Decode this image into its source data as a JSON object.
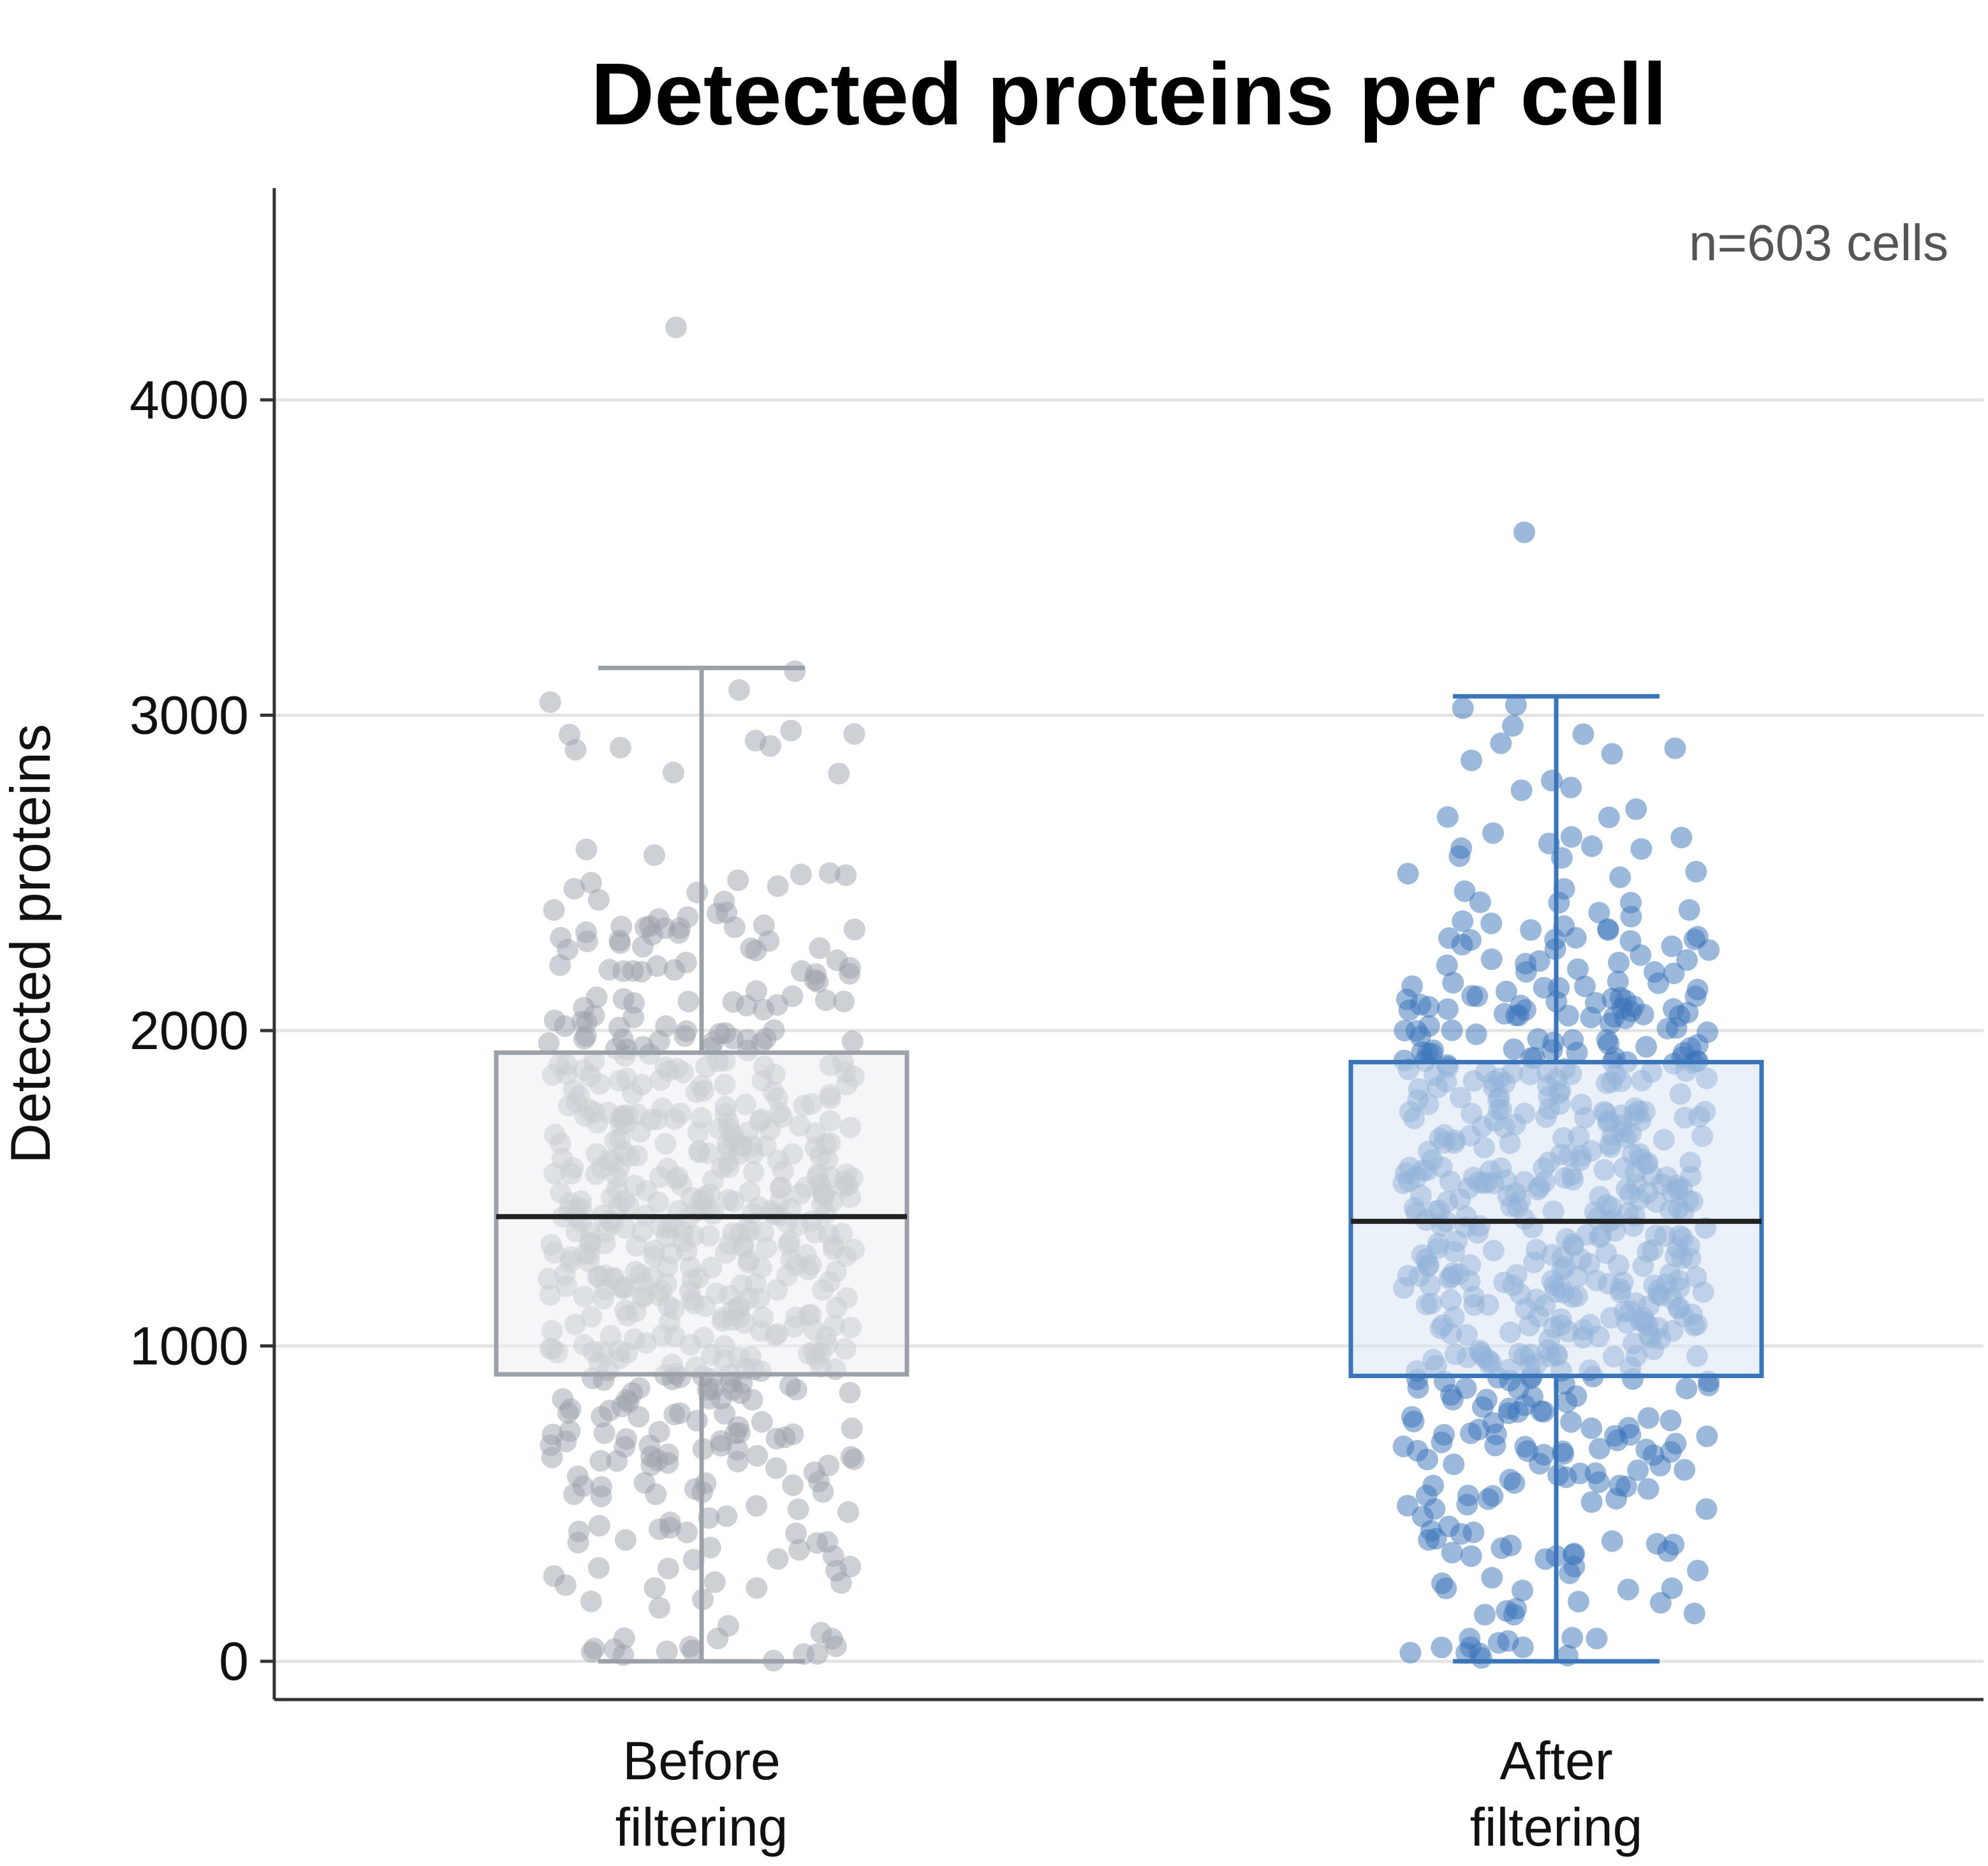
{
  "chart_data": {
    "type": "box",
    "title": "Detected proteins per cell",
    "ylabel": "Detected proteins",
    "xlabel": "",
    "annotation": "n=603 cells",
    "ylim": [
      -120,
      4650
    ],
    "yticks": [
      0,
      1000,
      2000,
      3000,
      4000
    ],
    "grid": true,
    "categories": [
      {
        "lines": [
          "Before",
          "filtering"
        ]
      },
      {
        "lines": [
          "After",
          "filtering"
        ]
      }
    ],
    "series": [
      {
        "category": "Before filtering",
        "color": "#9ba1a9",
        "fill": "#eceef0",
        "whisker_low": 0,
        "q1": 910,
        "median": 1410,
        "q3": 1930,
        "whisker_high": 3150,
        "outliers": [
          4230
        ],
        "n_points": 603
      },
      {
        "category": "After filtering",
        "color": "#3a74b9",
        "fill": "#dbe6f2",
        "whisker_low": 0,
        "q1": 905,
        "median": 1395,
        "q3": 1900,
        "whisker_high": 3060,
        "outliers": [
          3580
        ],
        "n_points": 603
      }
    ]
  }
}
